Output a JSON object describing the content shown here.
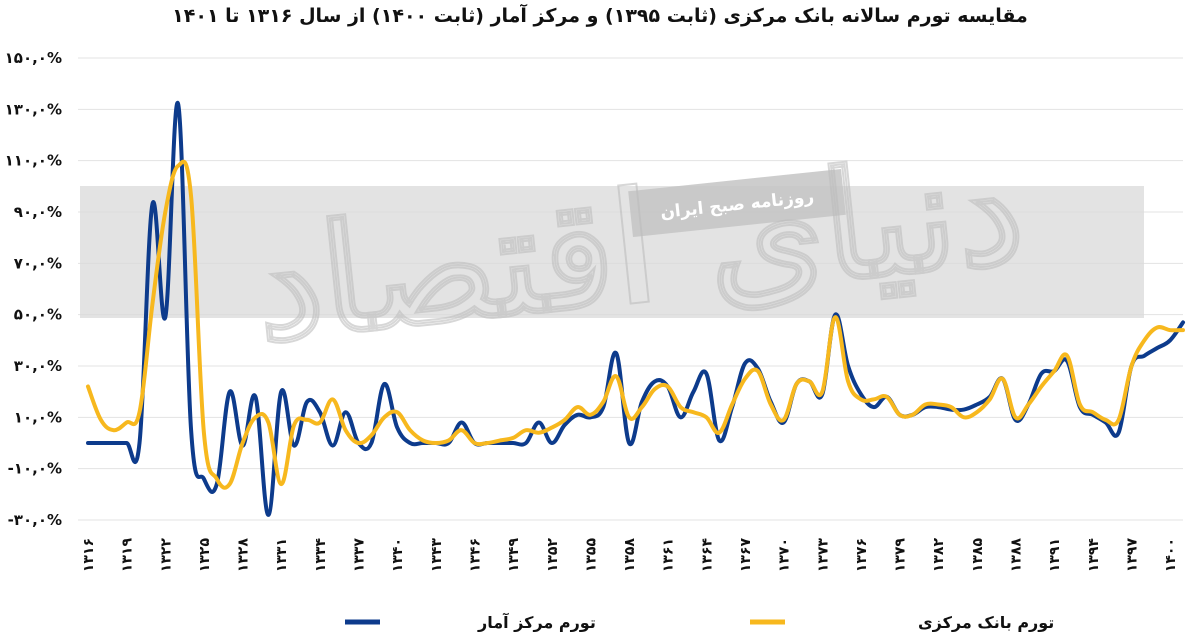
{
  "chart_data": {
    "type": "line",
    "title": "مقایسه تورم سالانه بانک مرکزی (ثابت ۱۳۹۵) و مرکز آمار (ثابت ۱۴۰۰) از سال ۱۳۱۶ تا ۱۴۰۱",
    "xlabel": "",
    "ylabel": "",
    "ylim": [
      -30,
      150
    ],
    "yticks": [
      150,
      130,
      110,
      90,
      70,
      50,
      30,
      10,
      -10,
      -30
    ],
    "ytick_labels": [
      "۱۵۰,۰%",
      "۱۳۰,۰%",
      "۱۱۰,۰%",
      "۹۰,۰%",
      "۷۰,۰%",
      "۵۰,۰%",
      "۳۰,۰%",
      "۱۰,۰%",
      "-۱۰,۰%",
      "-۳۰,۰%"
    ],
    "x": [
      1316,
      1317,
      1318,
      1319,
      1320,
      1321,
      1322,
      1323,
      1324,
      1325,
      1326,
      1327,
      1328,
      1329,
      1330,
      1331,
      1332,
      1333,
      1334,
      1335,
      1336,
      1337,
      1338,
      1339,
      1340,
      1341,
      1342,
      1343,
      1344,
      1345,
      1346,
      1347,
      1348,
      1349,
      1350,
      1351,
      1352,
      1353,
      1354,
      1355,
      1356,
      1357,
      1358,
      1359,
      1360,
      1361,
      1362,
      1363,
      1364,
      1365,
      1366,
      1367,
      1368,
      1369,
      1370,
      1371,
      1372,
      1373,
      1374,
      1375,
      1376,
      1377,
      1378,
      1379,
      1380,
      1381,
      1382,
      1383,
      1384,
      1385,
      1386,
      1387,
      1388,
      1389,
      1390,
      1391,
      1392,
      1393,
      1394,
      1395,
      1396,
      1397,
      1398,
      1399,
      1400,
      1401
    ],
    "x_tick_labels": [
      "۱۳۱۶",
      "۱۳۱۹",
      "۱۳۲۲",
      "۱۳۲۵",
      "۱۳۲۸",
      "۱۳۳۱",
      "۱۳۳۴",
      "۱۳۳۷",
      "۱۳۴۰",
      "۱۳۴۳",
      "۱۳۴۶",
      "۱۳۴۹",
      "۱۳۵۲",
      "۱۳۵۵",
      "۱۳۵۸",
      "۱۳۶۱",
      "۱۳۶۴",
      "۱۳۶۷",
      "۱۳۷۰",
      "۱۳۷۳",
      "۱۳۷۶",
      "۱۳۷۹",
      "۱۳۸۲",
      "۱۳۸۵",
      "۱۳۸۸",
      "۱۳۹۱",
      "۱۳۹۴",
      "۱۳۹۷",
      "۱۴۰۰"
    ],
    "x_tick_years": [
      1316,
      1319,
      1322,
      1325,
      1328,
      1331,
      1334,
      1337,
      1340,
      1343,
      1346,
      1349,
      1352,
      1355,
      1358,
      1361,
      1364,
      1367,
      1370,
      1373,
      1376,
      1379,
      1382,
      1385,
      1388,
      1391,
      1394,
      1397,
      1400
    ],
    "grid": true,
    "legend_position": "bottom",
    "series": [
      {
        "name": "تورم مرکز آمار",
        "color": "#0d3b8c",
        "values": [
          0,
          0,
          0,
          0,
          0,
          93,
          49,
          132,
          5,
          -14,
          -16,
          20,
          -1,
          18,
          -28,
          20,
          -1,
          16,
          12,
          -1,
          12,
          0,
          0,
          23,
          6,
          0,
          0,
          0,
          0,
          8,
          0,
          0,
          0,
          0,
          0,
          8,
          0,
          7,
          11,
          10,
          14,
          35,
          0,
          16,
          24,
          22,
          10,
          20,
          27,
          1,
          14,
          31,
          29,
          16,
          8,
          23,
          24,
          19,
          50,
          30,
          19,
          14,
          18,
          11,
          11,
          14,
          14,
          13,
          13,
          15,
          18,
          25,
          9,
          15,
          27,
          28,
          32,
          14,
          11,
          8,
          4,
          30,
          34,
          37,
          40,
          47
        ]
      },
      {
        "name": "تورم بانک مرکزی",
        "color": "#f7b81e",
        "values": [
          22,
          9,
          5,
          8,
          12,
          54,
          90,
          108,
          96,
          4,
          -14,
          -16,
          0,
          10,
          8,
          -16,
          7,
          9,
          8,
          17,
          5,
          0,
          3,
          10,
          12,
          5,
          1,
          0,
          1,
          5,
          0,
          0,
          1,
          2,
          5,
          4,
          6,
          9,
          14,
          11,
          16,
          26,
          10,
          14,
          21,
          22,
          14,
          12,
          10,
          4,
          15,
          25,
          28,
          15,
          9,
          23,
          24,
          20,
          49,
          24,
          17,
          17,
          18,
          11,
          11,
          15,
          15,
          14,
          10,
          12,
          17,
          25,
          10,
          15,
          22,
          28,
          34,
          15,
          12,
          9,
          9,
          30,
          40,
          45,
          44,
          44
        ]
      }
    ]
  },
  "watermark": {
    "band_label": "روزنامه صبح ایران",
    "logo_text": "دنیای اقتصاد"
  }
}
